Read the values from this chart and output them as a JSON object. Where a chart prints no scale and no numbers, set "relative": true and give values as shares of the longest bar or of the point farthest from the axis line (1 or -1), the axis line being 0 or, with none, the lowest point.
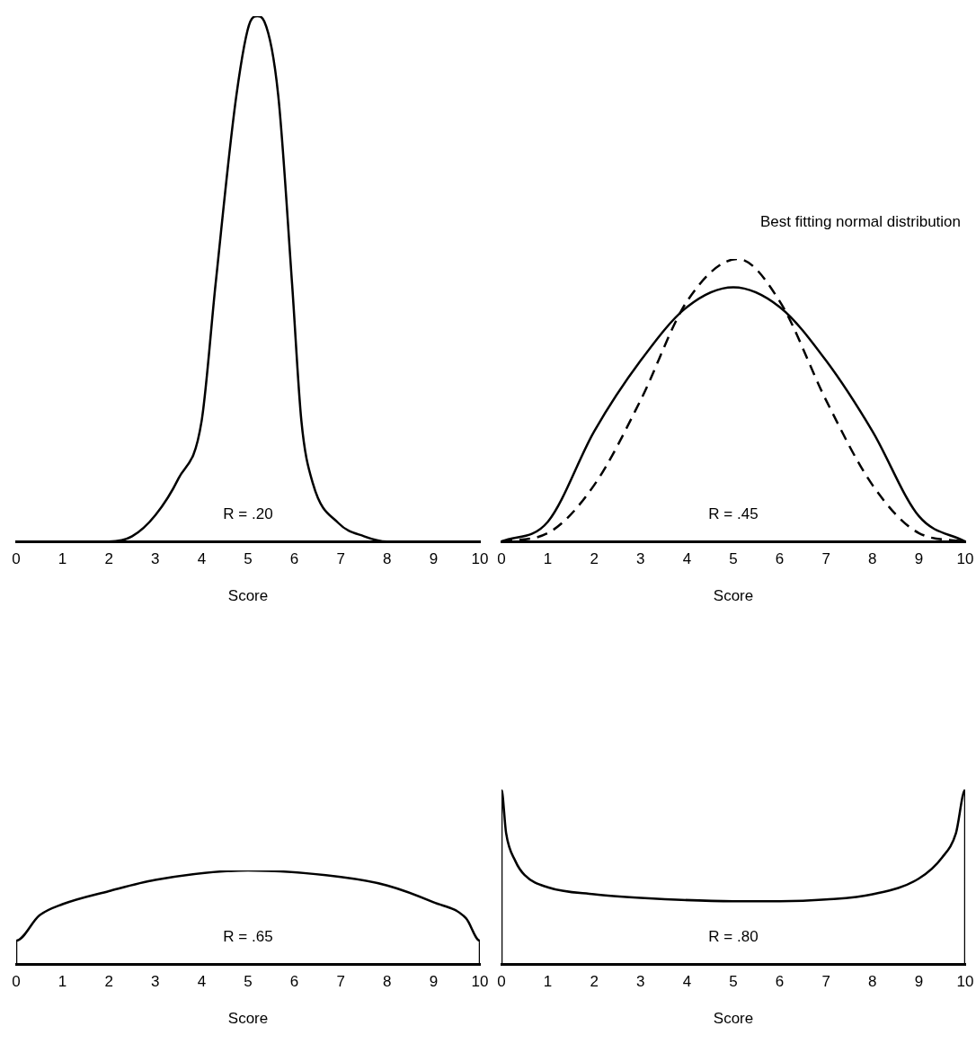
{
  "chart_data": [
    {
      "type": "line",
      "relative": true,
      "xlabel": "Score",
      "xlim": [
        0,
        10
      ],
      "xticks": [
        0,
        1,
        2,
        3,
        4,
        5,
        6,
        7,
        8,
        9,
        10
      ],
      "marker": "none",
      "annotations": [
        "R = .20"
      ],
      "series": [
        {
          "color": "#000000",
          "x": [
            0,
            1,
            2,
            2.5,
            3,
            3.5,
            4,
            4.3,
            4.75,
            5.05,
            5.2,
            5.35,
            5.65,
            5.95,
            6.15,
            6.4,
            6.95,
            7.5,
            8,
            9,
            10
          ],
          "values": [
            0,
            0,
            0,
            0.01,
            0.05,
            0.12,
            0.23,
            0.49,
            0.85,
            0.99,
            1,
            0.99,
            0.85,
            0.49,
            0.23,
            0.11,
            0.035,
            0.01,
            0,
            0,
            0
          ]
        }
      ]
    },
    {
      "type": "line",
      "relative": true,
      "xlabel": "Score",
      "xlim": [
        0,
        10
      ],
      "xticks": [
        0,
        1,
        2,
        3,
        4,
        5,
        6,
        7,
        8,
        9,
        10
      ],
      "marker": "none",
      "annotations": [
        "R = .45"
      ],
      "series": [
        {
          "color": "#000000",
          "x": [
            0,
            1,
            2,
            3,
            4,
            5,
            6,
            7,
            8,
            9,
            10
          ],
          "values": [
            0,
            0.07,
            0.39,
            0.64,
            0.83,
            0.9,
            0.83,
            0.64,
            0.39,
            0.09,
            0
          ]
        },
        {
          "name": "Best fitting normal distribution",
          "color": "#000000",
          "line_style": "dashed",
          "x": [
            0,
            1,
            2,
            3,
            4,
            5.1,
            6,
            7,
            8,
            9,
            10
          ],
          "values": [
            0,
            0.03,
            0.2,
            0.5,
            0.85,
            1,
            0.85,
            0.5,
            0.2,
            0.03,
            0
          ]
        }
      ]
    },
    {
      "type": "line",
      "relative": true,
      "xlabel": "Score",
      "xlim": [
        0,
        10
      ],
      "xticks": [
        0,
        1,
        2,
        3,
        4,
        5,
        6,
        7,
        8,
        9,
        10
      ],
      "marker": "none",
      "annotations": [
        "R = .65"
      ],
      "series": [
        {
          "color": "#000000",
          "x": [
            0,
            0,
            0.5,
            1,
            2,
            3,
            5,
            7,
            8,
            9,
            9.7,
            10,
            10
          ],
          "values": [
            0,
            0.25,
            0.52,
            0.64,
            0.78,
            0.9,
            1,
            0.93,
            0.84,
            0.66,
            0.49,
            0.25,
            0
          ]
        }
      ]
    },
    {
      "type": "line",
      "relative": true,
      "xlabel": "Score",
      "xlim": [
        0,
        10
      ],
      "xticks": [
        0,
        1,
        2,
        3,
        4,
        5,
        6,
        7,
        8,
        9,
        10
      ],
      "marker": "none",
      "annotations": [
        "R = .80"
      ],
      "series": [
        {
          "color": "#000000",
          "x": [
            0,
            0,
            0.1,
            0.3,
            0.5,
            1,
            2,
            3,
            5,
            6,
            7,
            8,
            9,
            9.5,
            9.8,
            10,
            10
          ],
          "values": [
            0,
            1,
            0.75,
            0.59,
            0.51,
            0.44,
            0.4,
            0.38,
            0.36,
            0.36,
            0.37,
            0.4,
            0.49,
            0.61,
            0.75,
            1,
            0
          ]
        }
      ]
    }
  ]
}
